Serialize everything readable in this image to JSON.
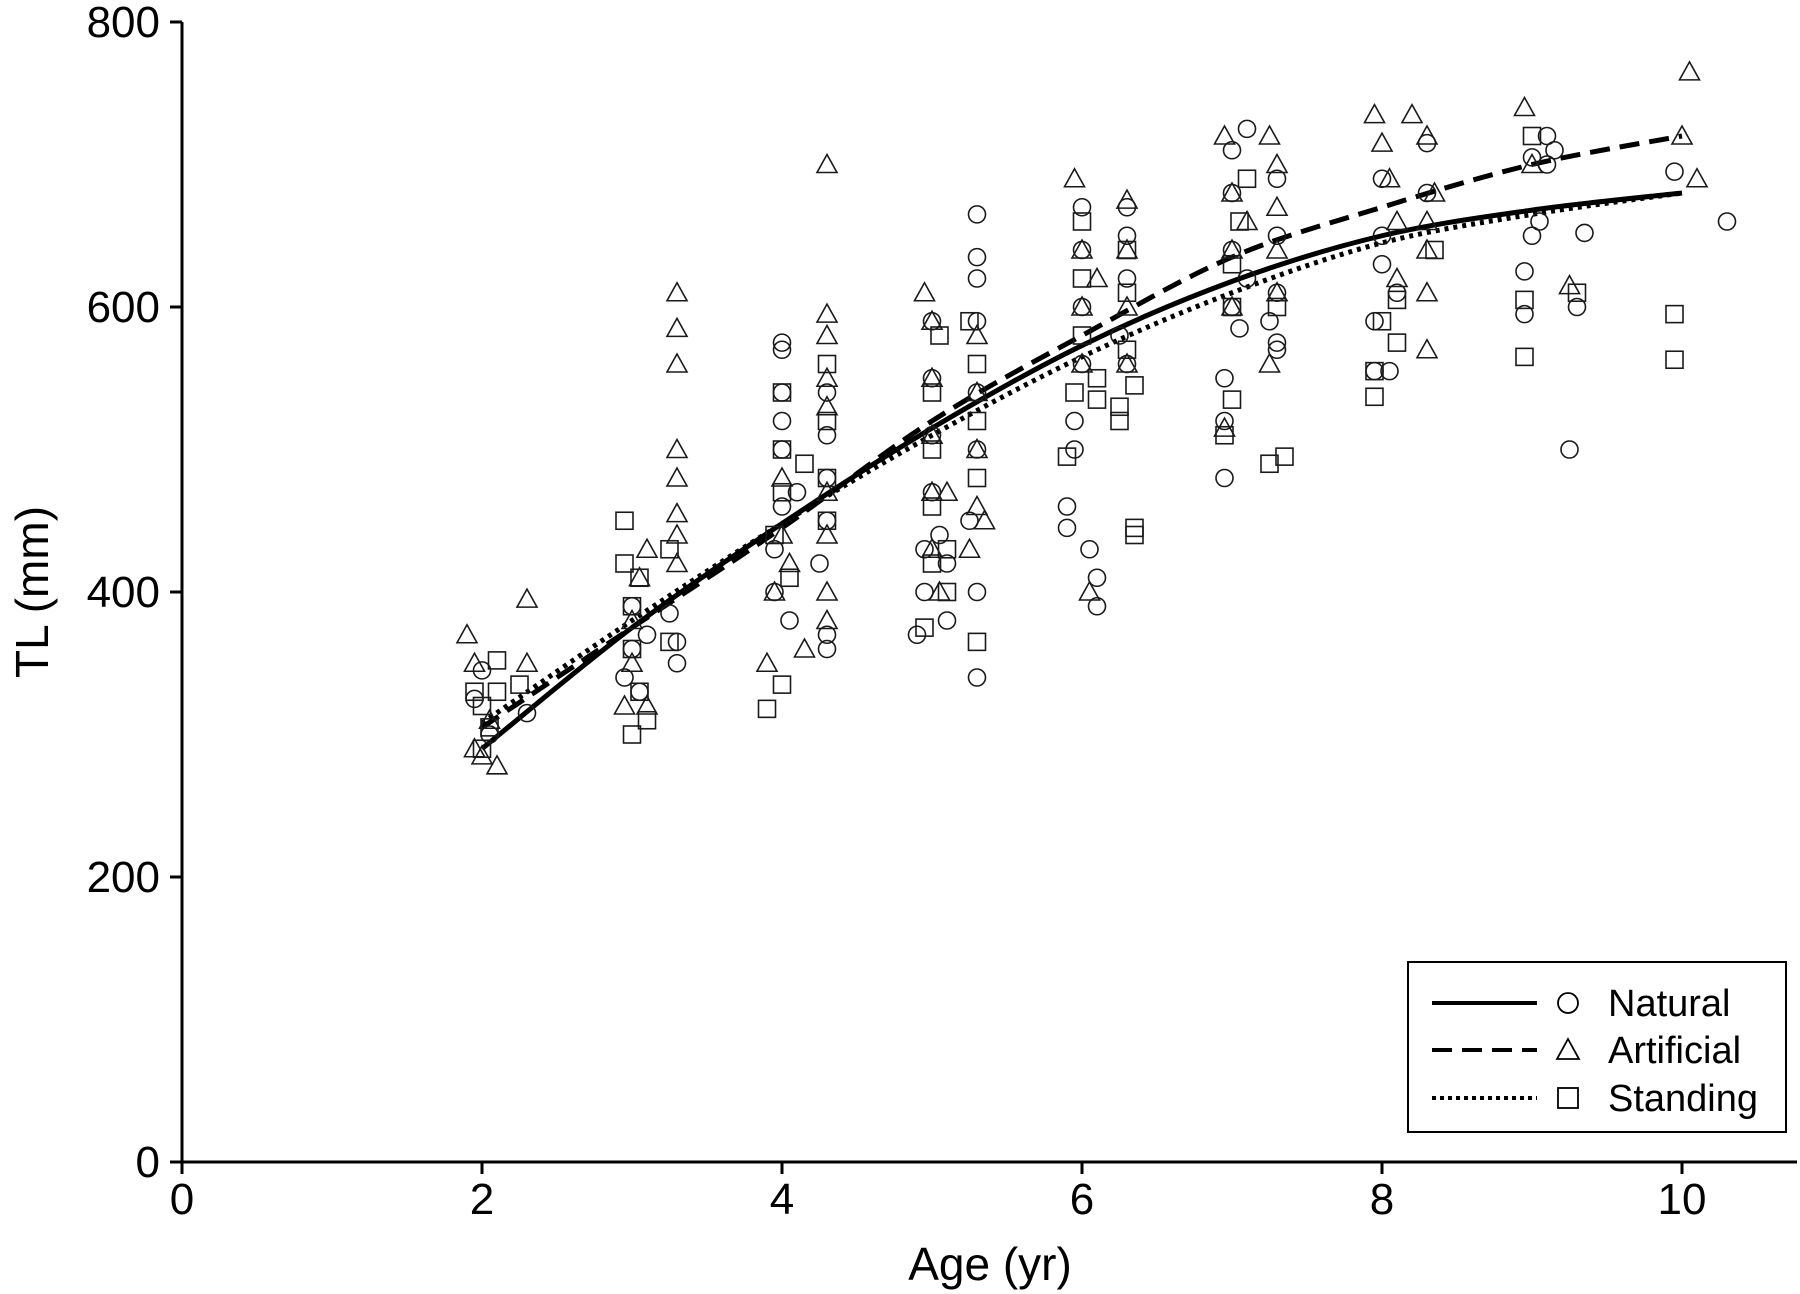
{
  "chart_data": {
    "type": "scatter",
    "xlabel": "Age (yr)",
    "ylabel": "TL (mm)",
    "xlim": [
      0,
      10.75
    ],
    "ylim": [
      0,
      800
    ],
    "xticks": [
      0,
      2,
      4,
      6,
      8,
      10
    ],
    "yticks": [
      0,
      200,
      400,
      600,
      800
    ],
    "grid": false,
    "legend_position": "bottom-right",
    "series": [
      {
        "name": "Natural",
        "marker": "circle",
        "line_style": "solid",
        "curve": {
          "x": [
            2,
            3,
            4,
            5,
            6,
            7,
            8,
            9,
            10
          ],
          "y": [
            290,
            375,
            448,
            515,
            573,
            618,
            650,
            668,
            680
          ]
        },
        "points": [
          [
            1.95,
            325
          ],
          [
            2.0,
            345
          ],
          [
            2.05,
            300
          ],
          [
            2.3,
            315
          ],
          [
            2.95,
            340
          ],
          [
            3.0,
            360
          ],
          [
            3.0,
            390
          ],
          [
            3.05,
            330
          ],
          [
            3.1,
            370
          ],
          [
            3.25,
            385
          ],
          [
            3.3,
            350
          ],
          [
            3.3,
            365
          ],
          [
            3.95,
            400
          ],
          [
            3.95,
            430
          ],
          [
            4.0,
            460
          ],
          [
            4.0,
            500
          ],
          [
            4.0,
            520
          ],
          [
            4.0,
            540
          ],
          [
            4.0,
            570
          ],
          [
            4.0,
            575
          ],
          [
            4.05,
            380
          ],
          [
            4.1,
            470
          ],
          [
            4.25,
            420
          ],
          [
            4.3,
            450
          ],
          [
            4.3,
            480
          ],
          [
            4.3,
            510
          ],
          [
            4.3,
            540
          ],
          [
            4.3,
            370
          ],
          [
            4.3,
            360
          ],
          [
            4.9,
            370
          ],
          [
            4.95,
            400
          ],
          [
            4.95,
            430
          ],
          [
            5.0,
            470
          ],
          [
            5.0,
            510
          ],
          [
            5.0,
            550
          ],
          [
            5.0,
            590
          ],
          [
            5.05,
            440
          ],
          [
            5.1,
            380
          ],
          [
            5.1,
            420
          ],
          [
            5.25,
            450
          ],
          [
            5.3,
            500
          ],
          [
            5.3,
            540
          ],
          [
            5.3,
            590
          ],
          [
            5.3,
            620
          ],
          [
            5.3,
            635
          ],
          [
            5.3,
            665
          ],
          [
            5.3,
            400
          ],
          [
            5.3,
            340
          ],
          [
            5.9,
            460
          ],
          [
            5.9,
            445
          ],
          [
            5.95,
            520
          ],
          [
            6.0,
            560
          ],
          [
            6.0,
            600
          ],
          [
            6.0,
            640
          ],
          [
            6.0,
            670
          ],
          [
            6.05,
            430
          ],
          [
            6.1,
            410
          ],
          [
            6.1,
            390
          ],
          [
            5.95,
            500
          ],
          [
            6.25,
            580
          ],
          [
            6.3,
            620
          ],
          [
            6.3,
            650
          ],
          [
            6.3,
            670
          ],
          [
            6.3,
            560
          ],
          [
            6.95,
            480
          ],
          [
            6.95,
            520
          ],
          [
            6.95,
            550
          ],
          [
            7.0,
            600
          ],
          [
            7.0,
            640
          ],
          [
            7.0,
            680
          ],
          [
            7.0,
            710
          ],
          [
            7.05,
            585
          ],
          [
            7.1,
            725
          ],
          [
            7.1,
            620
          ],
          [
            7.25,
            590
          ],
          [
            7.3,
            610
          ],
          [
            7.3,
            650
          ],
          [
            7.3,
            690
          ],
          [
            7.3,
            570
          ],
          [
            7.3,
            575
          ],
          [
            7.95,
            555
          ],
          [
            7.95,
            590
          ],
          [
            8.0,
            630
          ],
          [
            8.0,
            650
          ],
          [
            8.0,
            690
          ],
          [
            8.05,
            555
          ],
          [
            8.1,
            610
          ],
          [
            8.3,
            715
          ],
          [
            8.3,
            680
          ],
          [
            8.95,
            595
          ],
          [
            8.95,
            625
          ],
          [
            9.0,
            650
          ],
          [
            9.0,
            705
          ],
          [
            9.05,
            660
          ],
          [
            9.1,
            700
          ],
          [
            9.1,
            720
          ],
          [
            9.15,
            710
          ],
          [
            9.25,
            500
          ],
          [
            9.3,
            600
          ],
          [
            9.35,
            652
          ],
          [
            9.95,
            695
          ],
          [
            10.3,
            660
          ]
        ]
      },
      {
        "name": "Artificial",
        "marker": "triangle",
        "line_style": "dashed",
        "curve": {
          "x": [
            2,
            3,
            4,
            5,
            6,
            7,
            8,
            9,
            10
          ],
          "y": [
            305,
            375,
            445,
            520,
            580,
            635,
            670,
            700,
            720
          ]
        },
        "points": [
          [
            1.9,
            370
          ],
          [
            1.95,
            350
          ],
          [
            1.95,
            290
          ],
          [
            2.0,
            285
          ],
          [
            2.05,
            310
          ],
          [
            2.1,
            278
          ],
          [
            2.3,
            395
          ],
          [
            2.3,
            350
          ],
          [
            2.95,
            320
          ],
          [
            3.0,
            350
          ],
          [
            3.0,
            380
          ],
          [
            3.05,
            410
          ],
          [
            3.1,
            430
          ],
          [
            3.1,
            320
          ],
          [
            3.3,
            610
          ],
          [
            3.3,
            585
          ],
          [
            3.3,
            560
          ],
          [
            3.3,
            500
          ],
          [
            3.3,
            480
          ],
          [
            3.3,
            455
          ],
          [
            3.3,
            440
          ],
          [
            3.3,
            420
          ],
          [
            3.9,
            350
          ],
          [
            3.95,
            400
          ],
          [
            4.0,
            440
          ],
          [
            4.0,
            480
          ],
          [
            4.05,
            420
          ],
          [
            4.15,
            360
          ],
          [
            4.3,
            700
          ],
          [
            4.3,
            595
          ],
          [
            4.3,
            580
          ],
          [
            4.3,
            550
          ],
          [
            4.3,
            530
          ],
          [
            4.3,
            470
          ],
          [
            4.3,
            440
          ],
          [
            4.3,
            400
          ],
          [
            4.3,
            380
          ],
          [
            4.95,
            610
          ],
          [
            5.0,
            590
          ],
          [
            5.0,
            550
          ],
          [
            5.0,
            510
          ],
          [
            5.0,
            470
          ],
          [
            5.0,
            430
          ],
          [
            5.05,
            400
          ],
          [
            5.1,
            470
          ],
          [
            5.25,
            430
          ],
          [
            5.3,
            580
          ],
          [
            5.3,
            540
          ],
          [
            5.3,
            500
          ],
          [
            5.3,
            460
          ],
          [
            5.35,
            450
          ],
          [
            5.95,
            690
          ],
          [
            6.0,
            640
          ],
          [
            6.0,
            600
          ],
          [
            6.0,
            560
          ],
          [
            6.05,
            400
          ],
          [
            6.1,
            620
          ],
          [
            6.3,
            675
          ],
          [
            6.3,
            640
          ],
          [
            6.3,
            600
          ],
          [
            6.3,
            560
          ],
          [
            6.95,
            720
          ],
          [
            7.0,
            680
          ],
          [
            7.0,
            640
          ],
          [
            7.0,
            600
          ],
          [
            6.95,
            515
          ],
          [
            7.1,
            660
          ],
          [
            7.25,
            720
          ],
          [
            7.3,
            700
          ],
          [
            7.3,
            670
          ],
          [
            7.3,
            640
          ],
          [
            7.3,
            610
          ],
          [
            7.25,
            560
          ],
          [
            7.95,
            735
          ],
          [
            8.0,
            715
          ],
          [
            8.05,
            690
          ],
          [
            8.1,
            660
          ],
          [
            8.1,
            620
          ],
          [
            8.2,
            735
          ],
          [
            8.3,
            720
          ],
          [
            8.35,
            680
          ],
          [
            8.3,
            660
          ],
          [
            8.3,
            640
          ],
          [
            8.3,
            610
          ],
          [
            8.3,
            570
          ],
          [
            8.95,
            740
          ],
          [
            9.0,
            700
          ],
          [
            9.25,
            615
          ],
          [
            10.0,
            720
          ],
          [
            10.1,
            690
          ],
          [
            10.05,
            765
          ]
        ]
      },
      {
        "name": "Standing",
        "marker": "square",
        "line_style": "dotted",
        "curve": {
          "x": [
            2,
            3,
            4,
            5,
            6,
            7,
            8,
            9,
            10
          ],
          "y": [
            308,
            380,
            448,
            510,
            565,
            610,
            645,
            665,
            680
          ]
        },
        "points": [
          [
            1.95,
            330
          ],
          [
            2.0,
            320
          ],
          [
            2.05,
            305
          ],
          [
            2.1,
            352
          ],
          [
            2.1,
            330
          ],
          [
            2.25,
            335
          ],
          [
            2.0,
            290
          ],
          [
            2.95,
            450
          ],
          [
            2.95,
            420
          ],
          [
            3.0,
            390
          ],
          [
            3.0,
            360
          ],
          [
            3.05,
            330
          ],
          [
            3.0,
            300
          ],
          [
            3.1,
            310
          ],
          [
            3.05,
            410
          ],
          [
            3.25,
            430
          ],
          [
            3.25,
            365
          ],
          [
            3.9,
            318
          ],
          [
            3.95,
            440
          ],
          [
            4.0,
            470
          ],
          [
            4.0,
            500
          ],
          [
            4.0,
            540
          ],
          [
            4.05,
            410
          ],
          [
            4.0,
            335
          ],
          [
            4.15,
            490
          ],
          [
            4.3,
            560
          ],
          [
            4.3,
            520
          ],
          [
            4.3,
            480
          ],
          [
            4.3,
            450
          ],
          [
            4.95,
            375
          ],
          [
            5.0,
            420
          ],
          [
            5.0,
            460
          ],
          [
            5.0,
            500
          ],
          [
            5.0,
            540
          ],
          [
            5.05,
            580
          ],
          [
            5.1,
            430
          ],
          [
            5.1,
            400
          ],
          [
            5.25,
            590
          ],
          [
            5.3,
            560
          ],
          [
            5.3,
            520
          ],
          [
            5.3,
            480
          ],
          [
            5.3,
            365
          ],
          [
            5.9,
            495
          ],
          [
            5.95,
            540
          ],
          [
            6.0,
            580
          ],
          [
            6.0,
            620
          ],
          [
            6.0,
            660
          ],
          [
            6.1,
            550
          ],
          [
            6.1,
            535
          ],
          [
            6.25,
            530
          ],
          [
            6.3,
            570
          ],
          [
            6.3,
            610
          ],
          [
            6.3,
            640
          ],
          [
            6.25,
            520
          ],
          [
            6.35,
            445
          ],
          [
            6.35,
            440
          ],
          [
            6.35,
            545
          ],
          [
            6.95,
            510
          ],
          [
            7.0,
            535
          ],
          [
            7.0,
            600
          ],
          [
            7.0,
            630
          ],
          [
            7.05,
            660
          ],
          [
            7.1,
            690
          ],
          [
            7.25,
            490
          ],
          [
            7.35,
            495
          ],
          [
            7.3,
            600
          ],
          [
            7.95,
            537
          ],
          [
            7.95,
            555
          ],
          [
            8.0,
            590
          ],
          [
            8.1,
            605
          ],
          [
            8.1,
            575
          ],
          [
            8.35,
            640
          ],
          [
            8.95,
            565
          ],
          [
            8.95,
            605
          ],
          [
            9.0,
            720
          ],
          [
            9.3,
            610
          ],
          [
            9.95,
            563
          ],
          [
            9.95,
            595
          ]
        ]
      }
    ]
  }
}
